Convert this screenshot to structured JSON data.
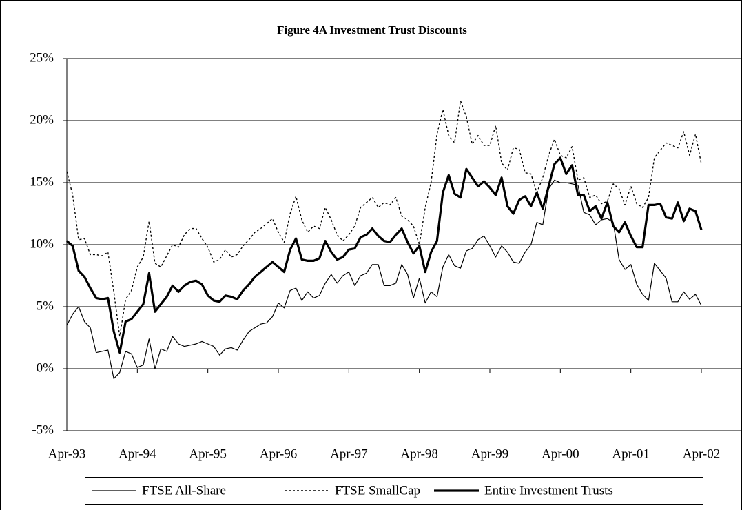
{
  "chart_data": {
    "type": "line",
    "title": "Figure 4A  Investment Trust Discounts",
    "categories": [
      "Apr-93",
      null,
      null,
      null,
      null,
      null,
      null,
      null,
      null,
      null,
      null,
      null,
      "Apr-94",
      null,
      null,
      null,
      null,
      null,
      null,
      null,
      null,
      null,
      null,
      null,
      "Apr-95",
      null,
      null,
      null,
      null,
      null,
      null,
      null,
      null,
      null,
      null,
      null,
      "Apr-96",
      null,
      null,
      null,
      null,
      null,
      null,
      null,
      null,
      null,
      null,
      null,
      "Apr-97",
      null,
      null,
      null,
      null,
      null,
      null,
      null,
      null,
      null,
      null,
      null,
      "Apr-98",
      null,
      null,
      null,
      null,
      null,
      null,
      null,
      null,
      null,
      null,
      null,
      "Apr-99",
      null,
      null,
      null,
      null,
      null,
      null,
      null,
      null,
      null,
      null,
      null,
      "Apr-00",
      null,
      null,
      null,
      null,
      null,
      null,
      null,
      null,
      null,
      null,
      null,
      "Apr-01",
      null,
      null,
      null,
      null,
      null,
      null,
      null,
      null,
      null,
      null,
      null,
      "Apr-02"
    ],
    "series": [
      {
        "name": "FTSE All-Share",
        "color": "#000000",
        "line_style": "solid",
        "line_width": 1.2,
        "values": [
          3.5,
          4.4,
          5.0,
          3.8,
          3.3,
          1.3,
          1.4,
          1.5,
          -0.8,
          -0.3,
          1.4,
          1.2,
          0.1,
          0.3,
          2.4,
          0.0,
          1.6,
          1.4,
          2.6,
          2.0,
          1.8,
          1.9,
          2.0,
          2.2,
          2.0,
          1.8,
          1.1,
          1.6,
          1.7,
          1.5,
          2.3,
          3.0,
          3.3,
          3.6,
          3.7,
          4.2,
          5.3,
          4.9,
          6.3,
          6.5,
          5.5,
          6.2,
          5.7,
          5.9,
          6.9,
          7.6,
          6.9,
          7.5,
          7.8,
          6.7,
          7.5,
          7.7,
          8.4,
          8.4,
          6.7,
          6.7,
          6.9,
          8.4,
          7.6,
          5.7,
          7.3,
          5.3,
          6.2,
          5.8,
          8.2,
          9.2,
          8.3,
          8.1,
          9.5,
          9.7,
          10.4,
          10.7,
          9.9,
          9.0,
          9.9,
          9.4,
          8.6,
          8.5,
          9.4,
          10.0,
          11.8,
          11.6,
          14.5,
          15.2,
          15.0,
          15.0,
          14.9,
          14.8,
          12.6,
          12.4,
          11.6,
          12.0,
          12.1,
          11.8,
          8.8,
          8.0,
          8.4,
          6.8,
          6.0,
          5.5,
          8.5,
          7.9,
          7.3,
          5.4,
          5.4,
          6.2,
          5.6,
          6.0,
          5.1
        ]
      },
      {
        "name": "FTSE SmallCap",
        "color": "#000000",
        "line_style": "dotted",
        "line_width": 1.4,
        "values": [
          15.9,
          14.0,
          10.4,
          10.5,
          9.2,
          9.2,
          9.1,
          9.4,
          6.2,
          2.6,
          5.6,
          6.3,
          8.2,
          9.0,
          11.9,
          8.5,
          8.2,
          9.1,
          10.0,
          9.8,
          10.8,
          11.3,
          11.3,
          10.5,
          9.8,
          8.6,
          8.8,
          9.6,
          9.0,
          9.2,
          9.9,
          10.4,
          11.0,
          11.3,
          11.7,
          12.1,
          11.0,
          10.2,
          12.5,
          13.9,
          12.0,
          11.0,
          11.5,
          11.3,
          13.0,
          12.0,
          10.8,
          10.3,
          10.8,
          11.5,
          13.0,
          13.4,
          13.8,
          13.0,
          13.4,
          13.2,
          13.8,
          12.3,
          12.0,
          11.5,
          10.0,
          13.0,
          15.0,
          18.9,
          20.9,
          18.8,
          18.2,
          21.6,
          20.3,
          18.1,
          18.8,
          18.0,
          18.0,
          19.6,
          16.6,
          16.0,
          17.8,
          17.7,
          15.8,
          15.7,
          14.2,
          15.4,
          17.2,
          18.5,
          17.2,
          17.0,
          17.9,
          15.2,
          15.4,
          13.8,
          14.0,
          13.3,
          13.5,
          14.9,
          14.5,
          13.2,
          14.7,
          13.3,
          13.0,
          13.8,
          17.0,
          17.6,
          18.2,
          18.0,
          17.8,
          19.1,
          17.2,
          18.9,
          16.5
        ]
      },
      {
        "name": "Entire Investment Trusts",
        "color": "#000000",
        "line_style": "solid",
        "line_width": 3.2,
        "values": [
          10.3,
          9.9,
          7.9,
          7.4,
          6.5,
          5.7,
          5.6,
          5.7,
          3.0,
          1.3,
          3.8,
          4.0,
          4.6,
          5.2,
          7.7,
          4.6,
          5.2,
          5.8,
          6.7,
          6.2,
          6.7,
          7.0,
          7.1,
          6.8,
          5.9,
          5.5,
          5.4,
          5.9,
          5.8,
          5.6,
          6.3,
          6.8,
          7.4,
          7.8,
          8.2,
          8.6,
          8.2,
          7.8,
          9.6,
          10.5,
          8.8,
          8.7,
          8.7,
          8.9,
          10.3,
          9.4,
          8.8,
          9.0,
          9.6,
          9.7,
          10.6,
          10.8,
          11.3,
          10.7,
          10.3,
          10.2,
          10.8,
          11.3,
          10.2,
          9.3,
          9.9,
          7.8,
          9.4,
          10.3,
          14.2,
          15.6,
          14.1,
          13.8,
          16.1,
          15.4,
          14.7,
          15.1,
          14.6,
          14.0,
          15.4,
          13.1,
          12.5,
          13.6,
          13.9,
          13.1,
          14.2,
          12.9,
          14.7,
          16.5,
          17.0,
          15.7,
          16.4,
          14.0,
          14.0,
          12.7,
          13.1,
          12.1,
          13.4,
          11.5,
          11.0,
          11.8,
          10.7,
          9.8,
          9.8,
          13.2,
          13.2,
          13.3,
          12.2,
          12.1,
          13.4,
          11.9,
          12.9,
          12.7,
          11.2
        ]
      }
    ],
    "ylim": [
      -5,
      25
    ],
    "yticks": [
      {
        "value": -5,
        "label": "-5%"
      },
      {
        "value": 0,
        "label": "0%"
      },
      {
        "value": 5,
        "label": "5%"
      },
      {
        "value": 10,
        "label": "10%"
      },
      {
        "value": 15,
        "label": "15%"
      },
      {
        "value": 20,
        "label": "20%"
      },
      {
        "value": 25,
        "label": "25%"
      }
    ],
    "grid": true,
    "legend": "bottom"
  }
}
